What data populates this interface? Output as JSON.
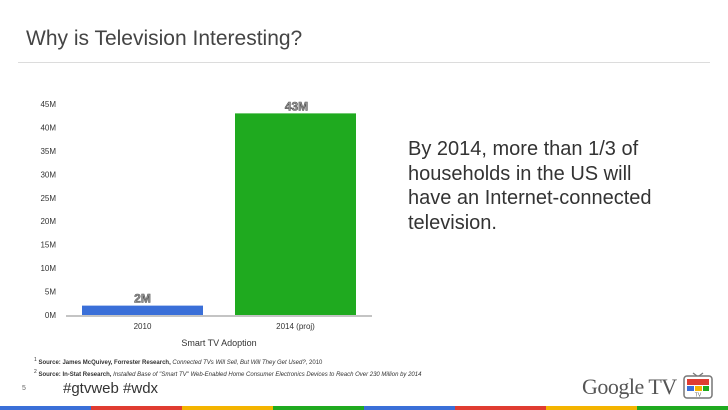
{
  "slide": {
    "title": "Why is Television Interesting?",
    "callout": "By 2014, more than 1/3 of households in the US will have an Internet-connected television.",
    "page_number": "5",
    "hashtags": "#gtvweb #wdx",
    "logo_text": "Google TV",
    "logo_badge": "TV"
  },
  "footnotes": [
    {
      "num": "1",
      "source": "Source: James McQuivey, Forrester Research,",
      "title": "Connected TVs Will Sell, But Will They Get Used?",
      "tail": ", 2010"
    },
    {
      "num": "2",
      "source": "Source: In-Stat Research,",
      "title": "Installed Base of \"Smart TV\" Web-Enabled Home Consumer Electronics Devices to Reach Over 230 Million by 2014",
      "tail": ""
    }
  ],
  "colors": {
    "bar_2010": "#3a6fd8",
    "bar_2014": "#1faa1f",
    "axis": "#888888",
    "stripe": [
      "#3a6fd8",
      "#e03c31",
      "#f4b400",
      "#1faa1f",
      "#3a6fd8",
      "#e03c31",
      "#f4b400",
      "#1faa1f"
    ]
  },
  "chart_data": {
    "type": "bar",
    "categories": [
      "2010",
      "2014 (proj)"
    ],
    "values": [
      2,
      43
    ],
    "data_labels": [
      "2M",
      "43M"
    ],
    "xlabel": "Smart TV Adoption",
    "ylabel": "",
    "ylim": [
      0,
      45
    ],
    "yticks": [
      0,
      5,
      10,
      15,
      20,
      25,
      30,
      35,
      40,
      45
    ],
    "ytick_labels": [
      "0M",
      "5M",
      "10M",
      "15M",
      "20M",
      "25M",
      "30M",
      "35M",
      "40M",
      "45M"
    ],
    "grid": false,
    "legend": "none"
  }
}
